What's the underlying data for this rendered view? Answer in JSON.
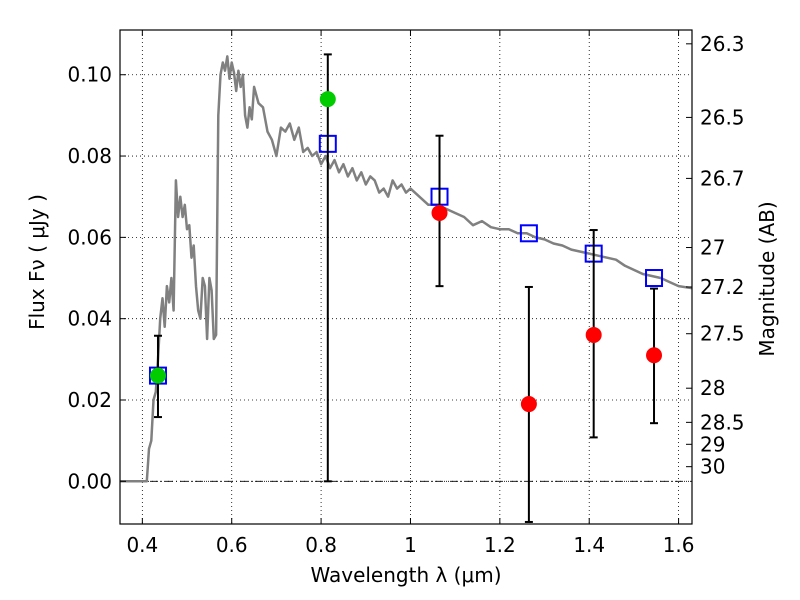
{
  "chart_data": {
    "type": "scatter",
    "xlabel": "Wavelength  λ (μm)",
    "ylabel": "Flux  Fν  ( μJy )",
    "ylabel_right": "Magnitude (AB)",
    "xlim": [
      0.35,
      1.63
    ],
    "ylim": [
      -0.0105,
      0.111
    ],
    "grid": true,
    "x_ticks": [
      0.4,
      0.6,
      0.8,
      1.0,
      1.2,
      1.4,
      1.6
    ],
    "x_tick_labels": [
      "0.4",
      "0.6",
      "0.8",
      "1",
      "1.2",
      "1.4",
      "1.6"
    ],
    "y_ticks": [
      0.0,
      0.02,
      0.04,
      0.06,
      0.08,
      0.1
    ],
    "y_tick_labels": [
      "0.00",
      "0.02",
      "0.04",
      "0.06",
      "0.08",
      "0.10"
    ],
    "right_ticks": [
      {
        "label": "26.3",
        "flux": 0.1076
      },
      {
        "label": "26.5",
        "flux": 0.0895
      },
      {
        "label": "26.7",
        "flux": 0.0745
      },
      {
        "label": "27",
        "flux": 0.0575
      },
      {
        "label": "27.2",
        "flux": 0.0478
      },
      {
        "label": "27.5",
        "flux": 0.0363
      },
      {
        "label": "28",
        "flux": 0.0229
      },
      {
        "label": "28.5",
        "flux": 0.0145
      },
      {
        "label": "29",
        "flux": 0.0091
      },
      {
        "label": "30",
        "flux": 0.0036
      }
    ],
    "series": [
      {
        "style": "line",
        "color": "#808080",
        "x": [
          0.35,
          0.41,
          0.415,
          0.42,
          0.425,
          0.43,
          0.435,
          0.44,
          0.445,
          0.45,
          0.455,
          0.46,
          0.465,
          0.47,
          0.475,
          0.48,
          0.485,
          0.49,
          0.495,
          0.5,
          0.505,
          0.51,
          0.515,
          0.52,
          0.525,
          0.53,
          0.535,
          0.54,
          0.545,
          0.55,
          0.555,
          0.56,
          0.565,
          0.57,
          0.575,
          0.58,
          0.585,
          0.59,
          0.595,
          0.6,
          0.605,
          0.61,
          0.615,
          0.62,
          0.625,
          0.63,
          0.635,
          0.64,
          0.645,
          0.65,
          0.655,
          0.66,
          0.67,
          0.68,
          0.69,
          0.7,
          0.71,
          0.72,
          0.73,
          0.74,
          0.75,
          0.76,
          0.77,
          0.78,
          0.79,
          0.8,
          0.81,
          0.82,
          0.83,
          0.84,
          0.85,
          0.86,
          0.87,
          0.88,
          0.89,
          0.9,
          0.91,
          0.92,
          0.93,
          0.94,
          0.95,
          0.96,
          0.97,
          0.98,
          0.99,
          1.0,
          1.02,
          1.04,
          1.06,
          1.08,
          1.1,
          1.12,
          1.14,
          1.16,
          1.18,
          1.2,
          1.22,
          1.24,
          1.26,
          1.28,
          1.3,
          1.32,
          1.34,
          1.36,
          1.38,
          1.4,
          1.42,
          1.44,
          1.46,
          1.48,
          1.5,
          1.52,
          1.54,
          1.56,
          1.58,
          1.6,
          1.63
        ],
        "y": [
          0.0,
          0.0,
          0.008,
          0.01,
          0.02,
          0.022,
          0.03,
          0.04,
          0.045,
          0.038,
          0.048,
          0.044,
          0.05,
          0.042,
          0.074,
          0.065,
          0.07,
          0.065,
          0.068,
          0.062,
          0.063,
          0.055,
          0.058,
          0.048,
          0.042,
          0.04,
          0.05,
          0.048,
          0.035,
          0.05,
          0.047,
          0.035,
          0.036,
          0.09,
          0.1,
          0.103,
          0.101,
          0.1045,
          0.099,
          0.103,
          0.1005,
          0.096,
          0.101,
          0.097,
          0.1,
          0.09,
          0.087,
          0.092,
          0.089,
          0.097,
          0.095,
          0.093,
          0.092,
          0.086,
          0.084,
          0.08,
          0.087,
          0.086,
          0.088,
          0.084,
          0.087,
          0.081,
          0.082,
          0.08,
          0.081,
          0.078,
          0.08,
          0.077,
          0.079,
          0.076,
          0.078,
          0.075,
          0.077,
          0.074,
          0.076,
          0.073,
          0.075,
          0.074,
          0.071,
          0.072,
          0.07,
          0.074,
          0.072,
          0.073,
          0.071,
          0.072,
          0.07,
          0.068,
          0.068,
          0.067,
          0.066,
          0.065,
          0.063,
          0.064,
          0.0625,
          0.062,
          0.062,
          0.061,
          0.061,
          0.06,
          0.0595,
          0.0585,
          0.058,
          0.057,
          0.0565,
          0.056,
          0.0555,
          0.055,
          0.0545,
          0.053,
          0.052,
          0.051,
          0.0505,
          0.05,
          0.049,
          0.048,
          0.0475
        ]
      },
      {
        "style": "open-square",
        "color": "#0000ff",
        "x": [
          0.435,
          0.815,
          1.065,
          1.265,
          1.41,
          1.545
        ],
        "y": [
          0.026,
          0.083,
          0.07,
          0.061,
          0.056,
          0.05
        ]
      },
      {
        "style": "filled-circle",
        "color": "#00cc00",
        "x": [
          0.435,
          0.815
        ],
        "y": [
          0.026,
          0.094
        ],
        "yerr_low": [
          0.0158,
          0.0
        ],
        "yerr_high": [
          0.0358,
          0.105
        ]
      },
      {
        "style": "filled-circle",
        "color": "#ff0000",
        "x": [
          1.065,
          1.265,
          1.41,
          1.545
        ],
        "y": [
          0.066,
          0.019,
          0.036,
          0.031
        ],
        "yerr_low": [
          0.048,
          -0.01,
          0.0108,
          0.0143
        ],
        "yerr_high": [
          0.085,
          0.0478,
          0.0618,
          0.0474
        ]
      }
    ]
  }
}
